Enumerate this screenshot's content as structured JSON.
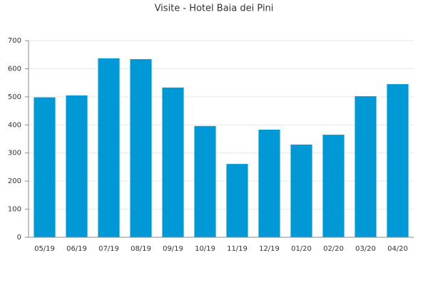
{
  "chart_data": {
    "type": "bar",
    "title": "Visite - Hotel Baia dei Pini",
    "categories": [
      "05/19",
      "06/19",
      "07/19",
      "08/19",
      "09/19",
      "10/19",
      "11/19",
      "12/19",
      "01/20",
      "02/20",
      "03/20",
      "04/20"
    ],
    "values": [
      498,
      505,
      637,
      634,
      533,
      396,
      261,
      383,
      330,
      365,
      502,
      545
    ],
    "color": "#0099d6",
    "ylim": [
      0,
      700
    ],
    "yticks": [
      0,
      100,
      200,
      300,
      400,
      500,
      600,
      700
    ],
    "grid": true
  }
}
